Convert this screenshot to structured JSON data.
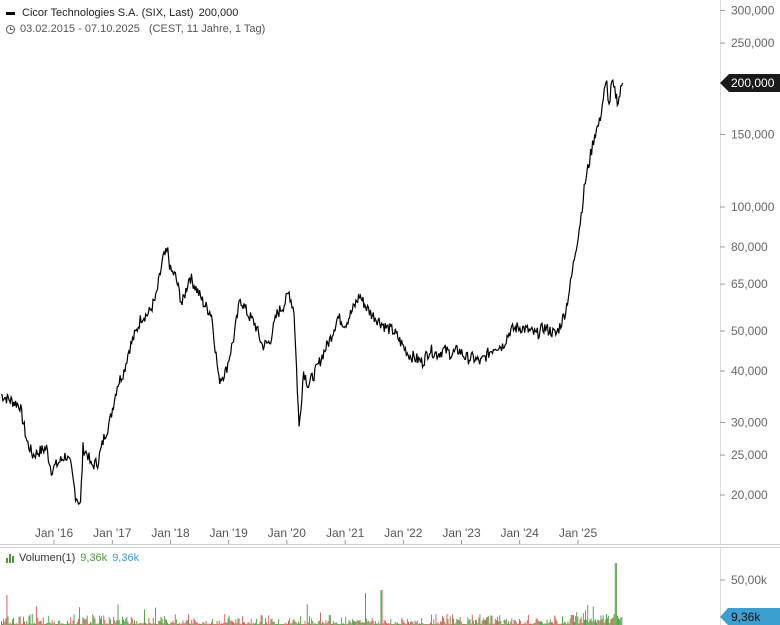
{
  "header": {
    "series_name": "Cicor Technologies S.A. (SIX, Last)",
    "last_value": "200,000",
    "date_range": "03.02.2015 - 07.10.2025",
    "period_info": "(CEST, 11 Jahre, 1 Tag)"
  },
  "volume_header": {
    "label": "Volumen(1)",
    "value_green": "9,36k",
    "value_blue": "9,36k"
  },
  "price_badge": "200,000",
  "volume_badge": "9,36k",
  "colors": {
    "line": "#000000",
    "badge_dark": "#1a1a1a",
    "badge_blue": "#3d9fd0",
    "volume_up": "#4a9a3c",
    "volume_down": "#d9534f",
    "grid": "#e0e0e0"
  },
  "chart_data": [
    {
      "type": "line",
      "scale": "log",
      "ylim": [
        16500,
        320000
      ],
      "xlim": [
        "2015-02-03",
        "2025-10-07"
      ],
      "yticks": [
        20000,
        25000,
        30000,
        40000,
        50000,
        65000,
        80000,
        100000,
        150000,
        200000,
        250000,
        300000
      ],
      "ytick_labels": [
        "20,000",
        "25,000",
        "30,000",
        "40,000",
        "50,000",
        "65,000",
        "80,000",
        "100,000",
        "150,000",
        "200,000",
        "250,000",
        "300,000"
      ],
      "xticks": [
        "2016-01-01",
        "2017-01-01",
        "2018-01-01",
        "2019-01-01",
        "2020-01-01",
        "2021-01-01",
        "2022-01-01",
        "2023-01-01",
        "2024-01-01",
        "2025-01-01"
      ],
      "xtick_labels": [
        "Jan '16",
        "Jan '17",
        "Jan '18",
        "Jan '19",
        "Jan '20",
        "Jan '21",
        "Jan '22",
        "Jan '23",
        "Jan '24",
        "Jan '25"
      ],
      "series": [
        {
          "x": [
            "2015-02-03",
            "2015-04-01",
            "2015-06-01",
            "2015-07-15",
            "2015-08-20",
            "2015-10-01",
            "2015-11-15",
            "2015-12-15",
            "2016-02-01",
            "2016-03-15",
            "2016-04-15",
            "2016-05-15",
            "2016-06-15",
            "2016-07-01",
            "2016-08-01",
            "2016-08-20",
            "2016-10-01",
            "2016-11-15",
            "2016-12-15",
            "2017-02-01",
            "2017-03-15",
            "2017-04-15",
            "2017-06-01",
            "2017-07-01",
            "2017-08-15",
            "2017-10-01",
            "2017-11-15",
            "2017-12-15",
            "2018-01-01",
            "2018-02-01",
            "2018-03-15",
            "2018-05-01",
            "2018-06-15",
            "2018-08-01",
            "2018-09-15",
            "2018-11-01",
            "2018-12-15",
            "2019-02-01",
            "2019-03-15",
            "2019-05-01",
            "2019-06-15",
            "2019-08-01",
            "2019-09-15",
            "2019-11-01",
            "2019-12-15",
            "2020-01-15",
            "2020-02-15",
            "2020-03-18",
            "2020-04-15",
            "2020-05-15",
            "2020-07-01",
            "2020-08-15",
            "2020-10-01",
            "2020-11-15",
            "2021-01-01",
            "2021-02-15",
            "2021-04-01",
            "2021-05-15",
            "2021-06-15",
            "2021-08-01",
            "2021-09-15",
            "2021-11-01",
            "2021-12-15",
            "2022-02-01",
            "2022-03-15",
            "2022-05-01",
            "2022-06-15",
            "2022-08-01",
            "2022-09-15",
            "2022-11-01",
            "2022-12-15",
            "2023-02-01",
            "2023-03-15",
            "2023-05-01",
            "2023-06-15",
            "2023-08-01",
            "2023-09-15",
            "2023-11-01",
            "2023-12-15",
            "2024-01-15",
            "2024-03-01",
            "2024-04-15",
            "2024-06-01",
            "2024-07-15",
            "2024-08-15",
            "2024-09-15",
            "2024-10-15",
            "2024-11-15",
            "2024-12-15",
            "2025-01-15",
            "2025-02-15",
            "2025-03-15",
            "2025-04-15",
            "2025-05-15",
            "2025-06-15",
            "2025-07-01",
            "2025-07-15",
            "2025-08-01",
            "2025-08-20",
            "2025-09-10",
            "2025-10-07"
          ],
          "y": [
            35000,
            34000,
            33000,
            27000,
            25000,
            25500,
            26000,
            23000,
            24000,
            25000,
            23500,
            20000,
            19000,
            26000,
            25000,
            23500,
            24000,
            28000,
            30000,
            37000,
            40000,
            45000,
            50000,
            54000,
            55000,
            60000,
            75000,
            78000,
            70000,
            68000,
            58000,
            68000,
            63000,
            58000,
            55000,
            38000,
            40000,
            48000,
            60000,
            55000,
            52000,
            46000,
            47000,
            55000,
            58000,
            62000,
            56000,
            29000,
            40000,
            37000,
            40000,
            44000,
            48000,
            54000,
            52000,
            56000,
            61000,
            57000,
            55000,
            53000,
            51000,
            50000,
            47000,
            44000,
            43000,
            42000,
            45000,
            44000,
            45000,
            44000,
            45000,
            43000,
            43000,
            42000,
            44000,
            46000,
            46000,
            50000,
            51000,
            51000,
            50000,
            49000,
            51000,
            50000,
            49000,
            52000,
            56000,
            65000,
            78000,
            92000,
            115000,
            130000,
            150000,
            160000,
            190000,
            200000,
            175000,
            200000,
            190000,
            180000,
            200000
          ]
        }
      ]
    },
    {
      "type": "bar",
      "title": "Volumen(1)",
      "ylim": [
        0,
        80000
      ],
      "yticks": [
        50000
      ],
      "ytick_labels": [
        "50,00k"
      ],
      "last_value": 9360
    }
  ]
}
